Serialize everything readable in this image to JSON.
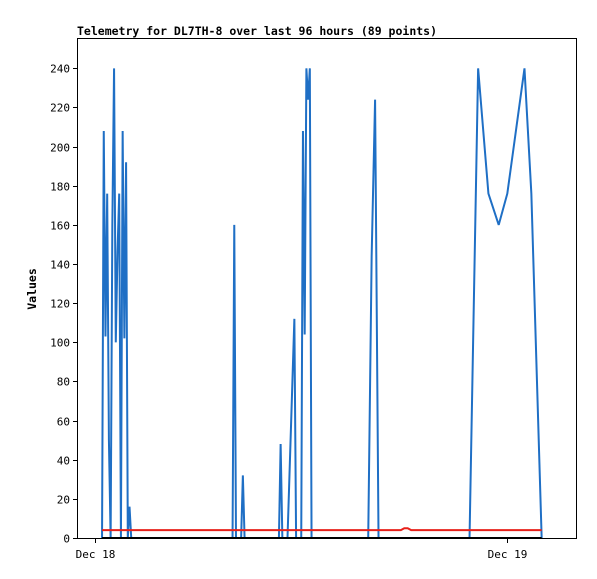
{
  "chart_data": {
    "type": "line",
    "title": "Telemetry for DL7TH-8 over last 96 hours (89 points)",
    "xlabel": "",
    "ylabel": "Values",
    "x_domain_hours": [
      -1,
      28
    ],
    "x_ticks": [
      {
        "label": "Dec 18",
        "hours": 0
      },
      {
        "label": "Dec 19",
        "hours": 24
      }
    ],
    "ylim": [
      0,
      255
    ],
    "y_ticks": [
      0,
      20,
      40,
      60,
      80,
      100,
      120,
      140,
      160,
      180,
      200,
      220,
      240
    ],
    "grid": false,
    "legend": "none",
    "series": [
      {
        "color": "#1f6fc5",
        "points": [
          [
            0.4,
            0
          ],
          [
            0.5,
            208
          ],
          [
            0.6,
            103
          ],
          [
            0.7,
            176
          ],
          [
            0.8,
            50
          ],
          [
            0.9,
            0
          ],
          [
            1.0,
            160
          ],
          [
            1.1,
            240
          ],
          [
            1.2,
            100
          ],
          [
            1.3,
            146
          ],
          [
            1.4,
            176
          ],
          [
            1.5,
            0
          ],
          [
            1.6,
            208
          ],
          [
            1.7,
            102
          ],
          [
            1.8,
            192
          ],
          [
            1.9,
            0
          ],
          [
            2.0,
            16
          ],
          [
            2.1,
            0
          ],
          [
            8.0,
            0
          ],
          [
            8.1,
            160
          ],
          [
            8.2,
            0
          ],
          [
            8.5,
            0
          ],
          [
            8.6,
            32
          ],
          [
            8.7,
            0
          ],
          [
            10.7,
            0
          ],
          [
            10.8,
            48
          ],
          [
            10.9,
            0
          ],
          [
            11.2,
            0
          ],
          [
            11.4,
            56
          ],
          [
            11.6,
            112
          ],
          [
            11.7,
            0
          ],
          [
            12.0,
            0
          ],
          [
            12.1,
            208
          ],
          [
            12.2,
            104
          ],
          [
            12.3,
            240
          ],
          [
            12.4,
            224
          ],
          [
            12.5,
            240
          ],
          [
            12.6,
            0
          ],
          [
            15.9,
            0
          ],
          [
            16.1,
            144
          ],
          [
            16.3,
            224
          ],
          [
            16.5,
            0
          ],
          [
            21.8,
            0
          ],
          [
            22.3,
            240
          ],
          [
            22.9,
            176
          ],
          [
            23.5,
            160
          ],
          [
            24.0,
            176
          ],
          [
            25.0,
            240
          ],
          [
            25.4,
            176
          ],
          [
            26.0,
            0
          ]
        ]
      },
      {
        "color": "#e8201a",
        "points": [
          [
            0.4,
            4
          ],
          [
            17.6,
            4
          ],
          [
            17.8,
            4
          ],
          [
            18.0,
            5
          ],
          [
            18.2,
            5
          ],
          [
            18.4,
            4
          ],
          [
            26.0,
            4
          ]
        ]
      },
      {
        "color": "#000000",
        "points": [
          [
            0.4,
            0
          ],
          [
            26.0,
            0
          ]
        ]
      }
    ]
  }
}
